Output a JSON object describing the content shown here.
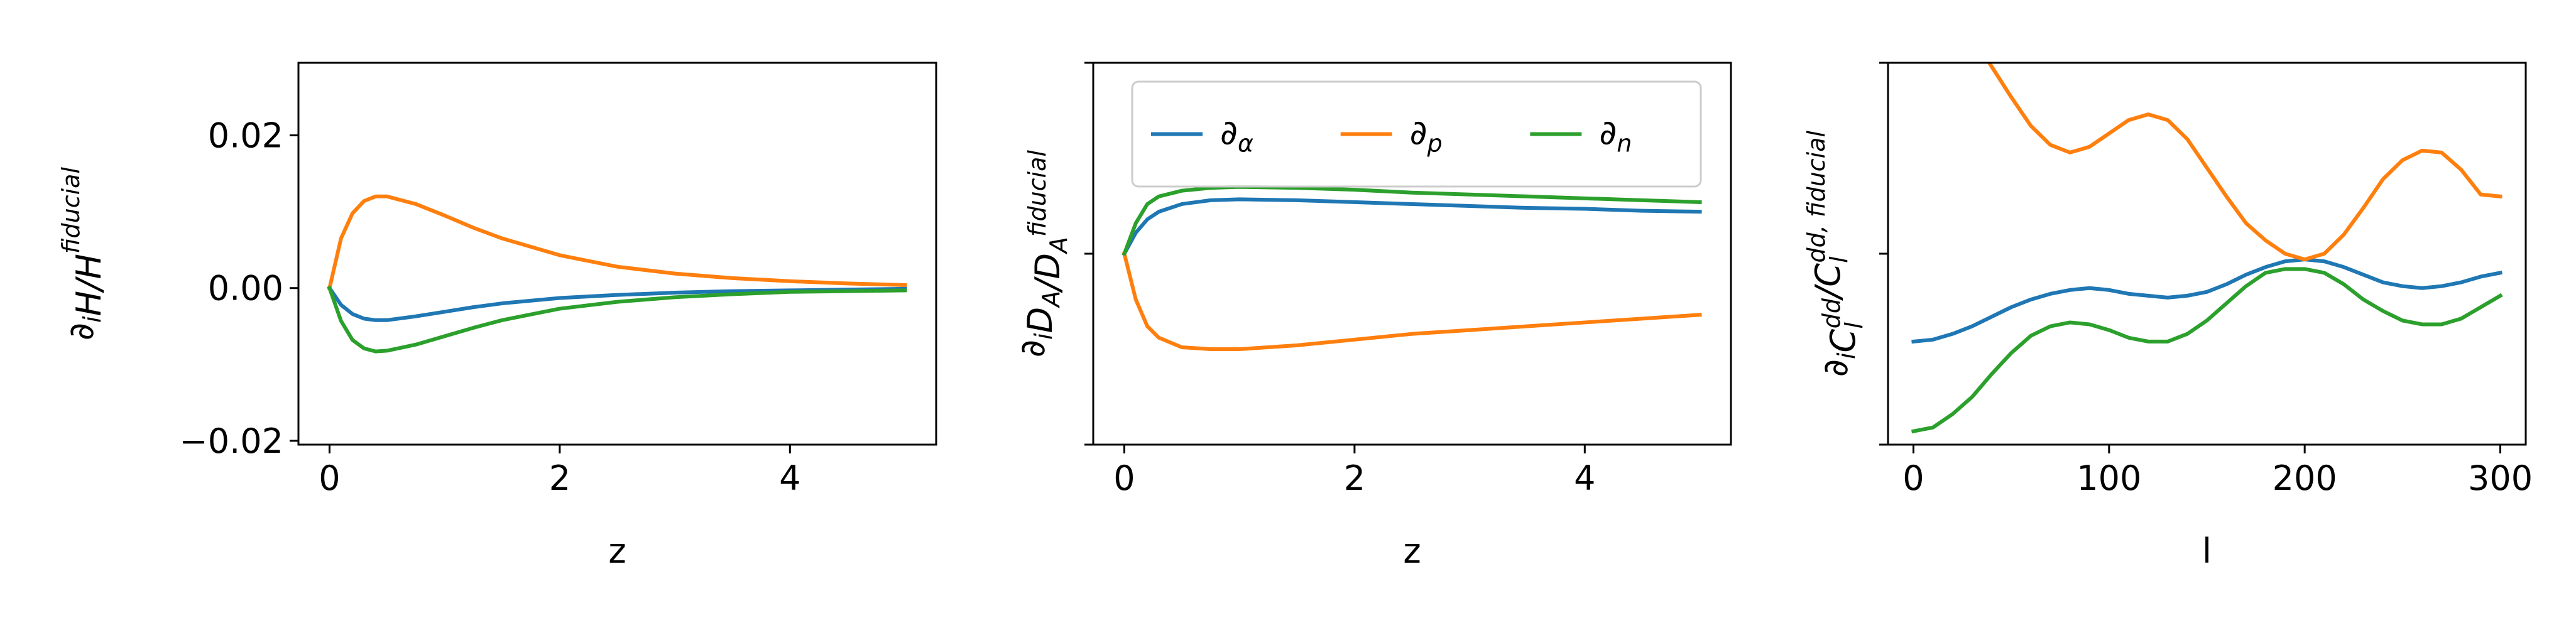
{
  "chart_data": [
    {
      "type": "line",
      "title": "",
      "xlabel": "z",
      "ylabel": "∂_i H/H^fiducial",
      "ylabel_parts": [
        {
          "text": "∂",
          "style": "normal"
        },
        {
          "text": "i",
          "style": "sub"
        },
        {
          "text": "H/H",
          "style": "italic"
        },
        {
          "text": "fiducial",
          "style": "sup"
        }
      ],
      "xlim": [
        -0.27,
        5.27
      ],
      "ylim": [
        -0.0205,
        0.0295
      ],
      "xticks": [
        0,
        2,
        4
      ],
      "xtick_labels": [
        "0",
        "2",
        "4"
      ],
      "yticks": [
        -0.02,
        0.0,
        0.02
      ],
      "ytick_labels": [
        "−0.02",
        "0.00",
        "0.02"
      ],
      "grid": false,
      "legend": null,
      "x": [
        0,
        0.1,
        0.2,
        0.3,
        0.4,
        0.5,
        0.75,
        1,
        1.25,
        1.5,
        2,
        2.5,
        3,
        3.5,
        4,
        4.5,
        5
      ],
      "series": [
        {
          "name": "∂_α",
          "color": "#1f77b4",
          "values": [
            0,
            -0.0022,
            -0.0034,
            -0.004,
            -0.0042,
            -0.0042,
            -0.0037,
            -0.0031,
            -0.0025,
            -0.002,
            -0.0013,
            -0.0009,
            -0.0006,
            -0.0004,
            -0.0003,
            -0.0002,
            -0.0001
          ]
        },
        {
          "name": "∂_p",
          "color": "#ff7f0e",
          "values": [
            0,
            0.0065,
            0.0098,
            0.0114,
            0.012,
            0.012,
            0.011,
            0.0095,
            0.0079,
            0.0065,
            0.0043,
            0.0028,
            0.0019,
            0.0013,
            0.0009,
            0.0006,
            0.0004
          ]
        },
        {
          "name": "∂_n",
          "color": "#2ca02c",
          "values": [
            0,
            -0.0043,
            -0.0068,
            -0.0079,
            -0.0083,
            -0.0082,
            -0.0074,
            -0.0063,
            -0.0052,
            -0.0042,
            -0.0027,
            -0.0018,
            -0.0012,
            -0.0008,
            -0.0005,
            -0.0004,
            -0.0003
          ]
        }
      ]
    },
    {
      "type": "line",
      "title": "",
      "xlabel": "z",
      "ylabel": "∂_i D_A/D_A^fiducial",
      "ylabel_parts": [
        {
          "text": "∂",
          "style": "normal"
        },
        {
          "text": "i",
          "style": "sub"
        },
        {
          "text": "D",
          "style": "italic"
        },
        {
          "text": "A",
          "style": "sub"
        },
        {
          "text": "/D",
          "style": "italic"
        },
        {
          "text": "A",
          "style": "sub"
        },
        {
          "text": "fiducial",
          "style": "sup"
        }
      ],
      "xlim": [
        -0.27,
        5.27
      ],
      "ylim": [
        -1.0,
        1.0
      ],
      "xticks": [
        0,
        2,
        4
      ],
      "xtick_labels": [
        "0",
        "2",
        "4"
      ],
      "yticks": [
        -1.0,
        0.0,
        1.0
      ],
      "ytick_labels": [
        "",
        "",
        ""
      ],
      "grid": false,
      "legend": {
        "placement": "top",
        "columns": 3
      },
      "x": [
        0,
        0.1,
        0.2,
        0.3,
        0.5,
        0.75,
        1,
        1.5,
        2,
        2.5,
        3,
        3.5,
        4,
        4.5,
        5
      ],
      "series": [
        {
          "name": "∂_α",
          "color": "#1f77b4",
          "values": [
            0,
            0.11,
            0.18,
            0.22,
            0.26,
            0.28,
            0.285,
            0.28,
            0.27,
            0.26,
            0.25,
            0.24,
            0.235,
            0.225,
            0.22
          ]
        },
        {
          "name": "∂_p",
          "color": "#ff7f0e",
          "values": [
            0,
            -0.24,
            -0.38,
            -0.44,
            -0.49,
            -0.5,
            -0.5,
            -0.48,
            -0.45,
            -0.42,
            -0.4,
            -0.38,
            -0.36,
            -0.34,
            -0.32
          ]
        },
        {
          "name": "∂_n",
          "color": "#2ca02c",
          "values": [
            0,
            0.16,
            0.26,
            0.3,
            0.33,
            0.345,
            0.35,
            0.345,
            0.335,
            0.32,
            0.31,
            0.3,
            0.29,
            0.28,
            0.27
          ]
        }
      ]
    },
    {
      "type": "line",
      "title": "",
      "xlabel": "l",
      "ylabel": "∂_i C_l^dd/C_l^dd,fiducial",
      "ylabel_parts": [
        {
          "text": "∂",
          "style": "normal"
        },
        {
          "text": "i",
          "style": "sub"
        },
        {
          "text": "C",
          "style": "italic"
        },
        {
          "text": "l",
          "style": "subsup",
          "sup": "dd"
        },
        {
          "text": "/C",
          "style": "italic"
        },
        {
          "text": "l",
          "style": "subsup",
          "sup": "dd, fiducial"
        }
      ],
      "xlim": [
        -13,
        313
      ],
      "ylim": [
        -1.0,
        1.0
      ],
      "xticks": [
        0,
        100,
        200,
        300
      ],
      "xtick_labels": [
        "0",
        "100",
        "200",
        "300"
      ],
      "yticks": [
        -1.0,
        0.0,
        1.0
      ],
      "ytick_labels": [
        "",
        "",
        ""
      ],
      "grid": false,
      "legend": null,
      "x": [
        0,
        10,
        20,
        30,
        40,
        50,
        60,
        70,
        80,
        90,
        100,
        110,
        120,
        130,
        140,
        150,
        160,
        170,
        180,
        190,
        200,
        210,
        220,
        230,
        240,
        250,
        260,
        270,
        280,
        290,
        300
      ],
      "series": [
        {
          "name": "∂_α",
          "color": "#1f77b4",
          "values": [
            -0.46,
            -0.45,
            -0.42,
            -0.38,
            -0.33,
            -0.28,
            -0.24,
            -0.21,
            -0.19,
            -0.18,
            -0.19,
            -0.21,
            -0.22,
            -0.23,
            -0.22,
            -0.2,
            -0.16,
            -0.11,
            -0.07,
            -0.04,
            -0.03,
            -0.04,
            -0.07,
            -0.11,
            -0.15,
            -0.17,
            -0.18,
            -0.17,
            -0.15,
            -0.12,
            -0.1
          ]
        },
        {
          "name": "∂_p",
          "color": "#ff7f0e",
          "values": [
            1.37,
            1.35,
            1.27,
            1.14,
            0.98,
            0.82,
            0.67,
            0.57,
            0.53,
            0.56,
            0.63,
            0.7,
            0.73,
            0.7,
            0.6,
            0.45,
            0.3,
            0.16,
            0.07,
            0.0,
            -0.03,
            0.0,
            0.1,
            0.24,
            0.39,
            0.49,
            0.54,
            0.53,
            0.44,
            0.31,
            0.3
          ]
        },
        {
          "name": "∂_n",
          "color": "#2ca02c",
          "values": [
            -0.93,
            -0.91,
            -0.84,
            -0.75,
            -0.63,
            -0.52,
            -0.43,
            -0.38,
            -0.36,
            -0.37,
            -0.4,
            -0.44,
            -0.46,
            -0.46,
            -0.42,
            -0.35,
            -0.26,
            -0.17,
            -0.1,
            -0.08,
            -0.08,
            -0.1,
            -0.16,
            -0.24,
            -0.3,
            -0.35,
            -0.37,
            -0.37,
            -0.34,
            -0.28,
            -0.22
          ]
        }
      ]
    }
  ]
}
